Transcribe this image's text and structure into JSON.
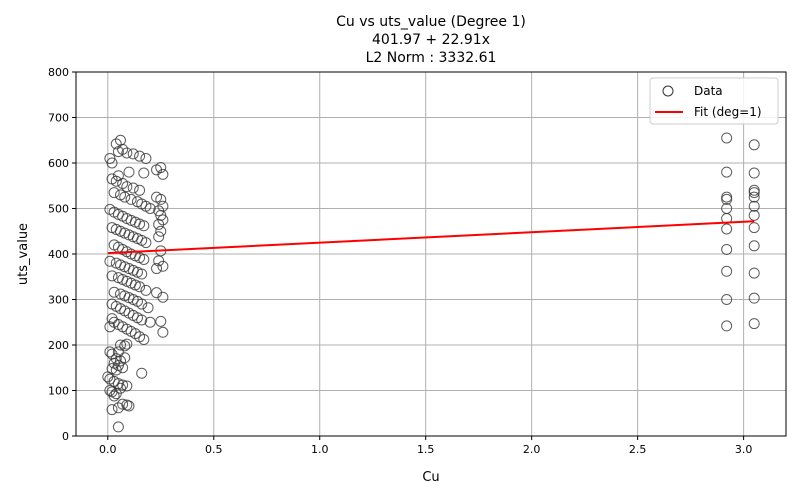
{
  "chart_data": {
    "type": "scatter",
    "title_lines": [
      "Cu vs uts_value (Degree 1)",
      "401.97 + 22.91x",
      "L2 Norm : 3332.61"
    ],
    "xlabel": "Cu",
    "ylabel": "uts_value",
    "xlim": [
      -0.15,
      3.2
    ],
    "ylim": [
      0,
      800
    ],
    "xticks": [
      0.0,
      0.5,
      1.0,
      1.5,
      2.0,
      2.5,
      3.0
    ],
    "xtick_labels": [
      "0.0",
      "0.5",
      "1.0",
      "1.5",
      "2.0",
      "2.5",
      "3.0"
    ],
    "yticks": [
      0,
      100,
      200,
      300,
      400,
      500,
      600,
      700,
      800
    ],
    "ytick_labels": [
      "0",
      "100",
      "200",
      "300",
      "400",
      "500",
      "600",
      "700",
      "800"
    ],
    "grid": true,
    "legend_position": "top-right",
    "legend": [
      {
        "label": "Data",
        "marker": "circle",
        "color": "#333333"
      },
      {
        "label": "Fit (deg=1)",
        "marker": "line",
        "color": "#ff0000"
      }
    ],
    "fit": {
      "intercept": 401.97,
      "slope": 22.91,
      "x_range": [
        0.0,
        3.05
      ],
      "color": "#ff0000"
    },
    "series": [
      {
        "name": "Data",
        "points": [
          [
            0.04,
            642
          ],
          [
            0.06,
            650
          ],
          [
            0.05,
            625
          ],
          [
            0.07,
            630
          ],
          [
            0.09,
            622
          ],
          [
            0.12,
            620
          ],
          [
            0.15,
            615
          ],
          [
            0.18,
            610
          ],
          [
            0.01,
            610
          ],
          [
            0.02,
            600
          ],
          [
            0.25,
            590
          ],
          [
            0.26,
            575
          ],
          [
            0.23,
            585
          ],
          [
            0.17,
            578
          ],
          [
            0.1,
            580
          ],
          [
            0.05,
            572
          ],
          [
            0.02,
            565
          ],
          [
            0.04,
            560
          ],
          [
            0.07,
            555
          ],
          [
            0.09,
            548
          ],
          [
            0.12,
            545
          ],
          [
            0.15,
            540
          ],
          [
            0.03,
            535
          ],
          [
            0.06,
            530
          ],
          [
            0.08,
            525
          ],
          [
            0.11,
            520
          ],
          [
            0.14,
            515
          ],
          [
            0.16,
            510
          ],
          [
            0.18,
            505
          ],
          [
            0.2,
            500
          ],
          [
            0.23,
            525
          ],
          [
            0.25,
            520
          ],
          [
            0.26,
            505
          ],
          [
            0.24,
            495
          ],
          [
            0.25,
            485
          ],
          [
            0.26,
            475
          ],
          [
            0.24,
            465
          ],
          [
            0.01,
            498
          ],
          [
            0.03,
            492
          ],
          [
            0.05,
            487
          ],
          [
            0.07,
            483
          ],
          [
            0.09,
            478
          ],
          [
            0.11,
            474
          ],
          [
            0.13,
            470
          ],
          [
            0.15,
            466
          ],
          [
            0.17,
            462
          ],
          [
            0.02,
            458
          ],
          [
            0.04,
            454
          ],
          [
            0.06,
            450
          ],
          [
            0.08,
            446
          ],
          [
            0.1,
            442
          ],
          [
            0.12,
            438
          ],
          [
            0.14,
            434
          ],
          [
            0.16,
            430
          ],
          [
            0.18,
            425
          ],
          [
            0.03,
            420
          ],
          [
            0.05,
            415
          ],
          [
            0.07,
            410
          ],
          [
            0.09,
            405
          ],
          [
            0.11,
            400
          ],
          [
            0.13,
            396
          ],
          [
            0.15,
            392
          ],
          [
            0.17,
            388
          ],
          [
            0.01,
            384
          ],
          [
            0.04,
            380
          ],
          [
            0.06,
            376
          ],
          [
            0.08,
            372
          ],
          [
            0.1,
            368
          ],
          [
            0.12,
            364
          ],
          [
            0.14,
            360
          ],
          [
            0.16,
            356
          ],
          [
            0.02,
            352
          ],
          [
            0.05,
            348
          ],
          [
            0.07,
            344
          ],
          [
            0.09,
            340
          ],
          [
            0.11,
            336
          ],
          [
            0.13,
            332
          ],
          [
            0.15,
            328
          ],
          [
            0.18,
            320
          ],
          [
            0.03,
            316
          ],
          [
            0.06,
            312
          ],
          [
            0.08,
            308
          ],
          [
            0.1,
            304
          ],
          [
            0.12,
            300
          ],
          [
            0.14,
            296
          ],
          [
            0.16,
            290
          ],
          [
            0.25,
            407
          ],
          [
            0.24,
            385
          ],
          [
            0.26,
            373
          ],
          [
            0.23,
            368
          ],
          [
            0.24,
            438
          ],
          [
            0.25,
            450
          ],
          [
            0.23,
            315
          ],
          [
            0.26,
            305
          ],
          [
            0.25,
            252
          ],
          [
            0.26,
            228
          ],
          [
            0.19,
            282
          ],
          [
            0.2,
            250
          ],
          [
            0.02,
            290
          ],
          [
            0.04,
            285
          ],
          [
            0.06,
            280
          ],
          [
            0.08,
            275
          ],
          [
            0.1,
            270
          ],
          [
            0.12,
            265
          ],
          [
            0.14,
            260
          ],
          [
            0.16,
            255
          ],
          [
            0.03,
            250
          ],
          [
            0.05,
            245
          ],
          [
            0.07,
            240
          ],
          [
            0.09,
            235
          ],
          [
            0.11,
            230
          ],
          [
            0.13,
            225
          ],
          [
            0.15,
            218
          ],
          [
            0.17,
            212
          ],
          [
            0.01,
            240
          ],
          [
            0.02,
            258
          ],
          [
            0.06,
            200
          ],
          [
            0.08,
            198
          ],
          [
            0.09,
            202
          ],
          [
            0.05,
            185
          ],
          [
            0.01,
            185
          ],
          [
            0.02,
            180
          ],
          [
            0.04,
            170
          ],
          [
            0.06,
            165
          ],
          [
            0.08,
            172
          ],
          [
            0.03,
            160
          ],
          [
            0.05,
            155
          ],
          [
            0.07,
            150
          ],
          [
            0.02,
            148
          ],
          [
            0.04,
            145
          ],
          [
            0.16,
            138
          ],
          [
            0.03,
            120
          ],
          [
            0.05,
            115
          ],
          [
            0.07,
            112
          ],
          [
            0.09,
            110
          ],
          [
            0.06,
            105
          ],
          [
            0.01,
            100
          ],
          [
            0.02,
            97
          ],
          [
            0.04,
            93
          ],
          [
            0.03,
            88
          ],
          [
            0.07,
            70
          ],
          [
            0.09,
            68
          ],
          [
            0.1,
            66
          ],
          [
            0.05,
            62
          ],
          [
            0.02,
            58
          ],
          [
            0.05,
            20
          ],
          [
            0.0,
            130
          ],
          [
            0.01,
            125
          ],
          [
            2.92,
            655
          ],
          [
            2.92,
            580
          ],
          [
            2.92,
            525
          ],
          [
            2.92,
            520
          ],
          [
            2.92,
            500
          ],
          [
            2.92,
            478
          ],
          [
            2.92,
            455
          ],
          [
            2.92,
            410
          ],
          [
            2.92,
            362
          ],
          [
            2.92,
            300
          ],
          [
            2.92,
            242
          ],
          [
            3.05,
            640
          ],
          [
            3.05,
            578
          ],
          [
            3.05,
            540
          ],
          [
            3.05,
            535
          ],
          [
            3.05,
            525
          ],
          [
            3.05,
            505
          ],
          [
            3.05,
            485
          ],
          [
            3.05,
            458
          ],
          [
            3.05,
            418
          ],
          [
            3.05,
            358
          ],
          [
            3.05,
            303
          ],
          [
            3.05,
            247
          ]
        ]
      }
    ]
  }
}
